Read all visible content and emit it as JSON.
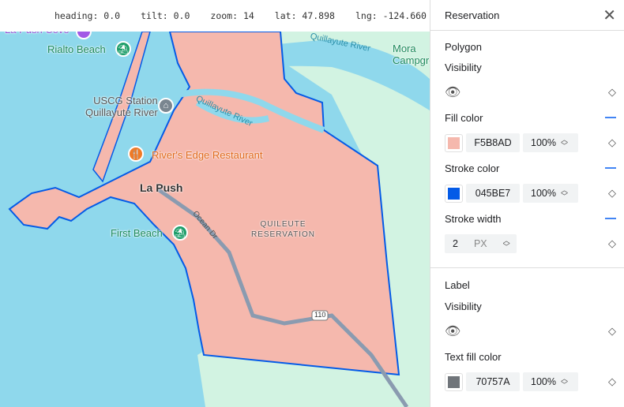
{
  "status_bar": {
    "heading": "heading: 0.0",
    "tilt": "tilt: 0.0",
    "zoom": "zoom: 14",
    "lat": "lat: 47.898",
    "lng": "lng: -124.660"
  },
  "map": {
    "labels": {
      "la_push_cove": "La Push Cove",
      "rialto_beach": "Rialto Beach",
      "uscg_line1": "USCG Station",
      "uscg_line2": "Quillayute River",
      "river1": "Quillayute River",
      "river2": "Quillayute River",
      "mora1": "Mora",
      "mora2": "Campgro",
      "rivers_edge": "River's Edge Restaurant",
      "la_push": "La Push",
      "ocean_dr": "Ocean Dr",
      "reservation1": "QUILEUTE",
      "reservation2": "RESERVATION",
      "first_beach": "First Beach",
      "route": "110"
    },
    "polygon": {
      "fill": "#F5B8AD",
      "stroke": "#045BE7",
      "stroke_width": 2
    }
  },
  "panel": {
    "title": "Reservation",
    "polygon": {
      "heading": "Polygon",
      "visibility": "Visibility",
      "fill_color": "Fill color",
      "fill_hex": "F5B8AD",
      "fill_opacity": "100%",
      "fill_swatch": "#F5B8AD",
      "stroke_color": "Stroke color",
      "stroke_hex": "045BE7",
      "stroke_opacity": "100%",
      "stroke_swatch": "#045BE7",
      "stroke_width": "Stroke width",
      "stroke_width_value": "2",
      "stroke_width_unit": "PX"
    },
    "label": {
      "heading": "Label",
      "visibility": "Visibility",
      "text_fill_color": "Text fill color",
      "text_fill_hex": "70757A",
      "text_fill_opacity": "100%",
      "text_fill_swatch": "#70757A"
    }
  }
}
